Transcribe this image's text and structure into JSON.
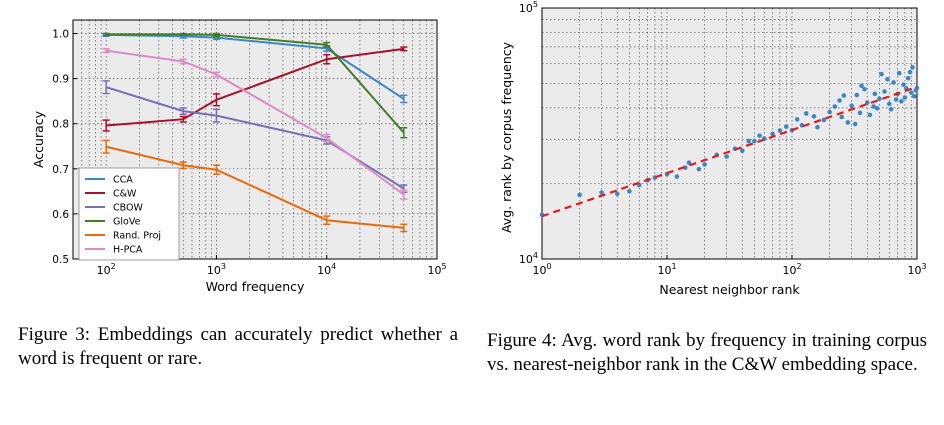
{
  "chart_data": [
    {
      "type": "line",
      "xlabel": "Word frequency",
      "ylabel": "Accuracy",
      "xscale": "log",
      "xlim": [
        50,
        100000
      ],
      "ylim": [
        0.5,
        1.03
      ],
      "x_ticks": [
        {
          "value": 100,
          "base": "10",
          "exp": "2"
        },
        {
          "value": 1000,
          "base": "10",
          "exp": "3"
        },
        {
          "value": 10000,
          "base": "10",
          "exp": "4"
        },
        {
          "value": 100000,
          "base": "10",
          "exp": "5"
        }
      ],
      "y_ticks": [
        {
          "value": 0.5,
          "label": "0.5"
        },
        {
          "value": 0.6,
          "label": "0.6"
        },
        {
          "value": 0.7,
          "label": "0.7"
        },
        {
          "value": 0.8,
          "label": "0.8"
        },
        {
          "value": 0.9,
          "label": "0.9"
        },
        {
          "value": 1.0,
          "label": "1.0"
        }
      ],
      "grid": true,
      "legend_position": "bottom-left",
      "x": [
        100,
        500,
        1000,
        10000,
        50000
      ],
      "series": [
        {
          "name": "CCA",
          "color": "#3a87c4",
          "values": [
            0.997,
            0.994,
            0.991,
            0.967,
            0.855
          ],
          "err": [
            0.003,
            0.004,
            0.004,
            0.006,
            0.008
          ]
        },
        {
          "name": "C&W",
          "color": "#a8102d",
          "values": [
            0.796,
            0.81,
            0.853,
            0.943,
            0.966
          ],
          "err": [
            0.012,
            0.006,
            0.013,
            0.01,
            0.004
          ]
        },
        {
          "name": "CBOW",
          "color": "#7470b3",
          "values": [
            0.881,
            0.828,
            0.818,
            0.763,
            0.656
          ],
          "err": [
            0.014,
            0.007,
            0.014,
            0.008,
            0.008
          ]
        },
        {
          "name": "GloVe",
          "color": "#3f7d2a",
          "values": [
            0.998,
            0.998,
            0.997,
            0.975,
            0.78
          ],
          "err": [
            0.002,
            0.002,
            0.003,
            0.005,
            0.011
          ]
        },
        {
          "name": "Rand. Proj",
          "color": "#e66b0e",
          "values": [
            0.749,
            0.708,
            0.698,
            0.586,
            0.569
          ],
          "err": [
            0.014,
            0.007,
            0.01,
            0.009,
            0.008
          ]
        },
        {
          "name": "H-PCA",
          "color": "#d98dc2",
          "values": [
            0.962,
            0.938,
            0.909,
            0.768,
            0.643
          ],
          "err": [
            0.004,
            0.005,
            0.005,
            0.008,
            0.01
          ]
        }
      ]
    },
    {
      "type": "scatter",
      "xlabel": "Nearest neighbor rank",
      "ylabel": "Avg. rank by corpus frequency",
      "xscale": "log",
      "yscale": "log",
      "xlim": [
        1,
        1000
      ],
      "ylim": [
        10000,
        100000
      ],
      "x_ticks": [
        {
          "value": 1,
          "base": "10",
          "exp": "0"
        },
        {
          "value": 10,
          "base": "10",
          "exp": "1"
        },
        {
          "value": 100,
          "base": "10",
          "exp": "2"
        },
        {
          "value": 1000,
          "base": "10",
          "exp": "3"
        }
      ],
      "y_ticks": [
        {
          "value": 10000,
          "base": "10",
          "exp": "4"
        },
        {
          "value": 100000,
          "base": "10",
          "exp": "5"
        }
      ],
      "grid": true,
      "point_color": "#3a87c4",
      "trend_color": "#e41a1c",
      "trend_line": {
        "x": [
          1,
          1000
        ],
        "y": [
          14800,
          48500
        ]
      },
      "points": {
        "x": [
          1,
          2,
          3,
          4,
          5,
          6,
          7,
          8,
          10,
          12,
          14,
          15,
          18,
          20,
          25,
          30,
          35,
          40,
          45,
          50,
          55,
          60,
          70,
          80,
          90,
          100,
          120,
          150,
          180,
          200,
          250,
          300,
          350,
          400,
          450,
          500,
          600,
          700,
          800,
          900,
          1000,
          130,
          160,
          220,
          280,
          330,
          420,
          550,
          650,
          750,
          850,
          950,
          110,
          240,
          380,
          480,
          580,
          680,
          780,
          880,
          980,
          320,
          460,
          620,
          720,
          820,
          920,
          260,
          360,
          520
        ],
        "y": [
          15000,
          18000,
          18400,
          18200,
          18600,
          19700,
          20600,
          21100,
          21800,
          21300,
          23100,
          24200,
          22800,
          23800,
          26000,
          25600,
          27500,
          27000,
          29500,
          29500,
          31000,
          30200,
          31500,
          32500,
          33700,
          32600,
          34100,
          37000,
          35800,
          38500,
          36800,
          40800,
          38200,
          42000,
          40500,
          43500,
          41500,
          45500,
          44000,
          46000,
          48000,
          38000,
          33500,
          40500,
          35000,
          45000,
          37500,
          46500,
          50500,
          42500,
          52500,
          44500,
          36000,
          42800,
          47500,
          39800,
          52000,
          43200,
          49500,
          55500,
          47000,
          34500,
          45500,
          39500,
          55000,
          47800,
          58000,
          44800,
          49000,
          54500
        ]
      }
    }
  ],
  "captions": {
    "figure3": "Figure 3:  Embeddings can accurately predict whether a word is frequent or rare.",
    "figure4": "Figure 4:  Avg.  word rank by frequency in training corpus vs. nearest-neighbor rank in the C&W embedding space."
  }
}
